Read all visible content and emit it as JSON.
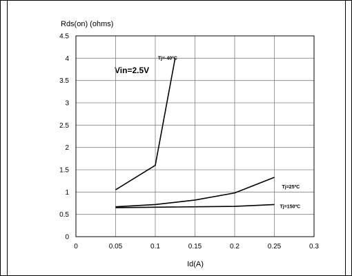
{
  "chart_data": {
    "type": "line",
    "ylabel": "Rds(on) (ohms)",
    "xlabel": "Id(A)",
    "annotation": "Vin=2.5V",
    "xlim": [
      0,
      0.3
    ],
    "ylim": [
      0,
      4.5
    ],
    "x_ticks": [
      "0",
      "0.05",
      "0.1",
      "0.15",
      "0.2",
      "0.25",
      "0.3"
    ],
    "y_ticks": [
      "0",
      "0.5",
      "1",
      "1.5",
      "2",
      "2.5",
      "3",
      "3.5",
      "4",
      "4.5"
    ],
    "grid": true,
    "series": [
      {
        "name": "Tj=-40ºC",
        "color": "#000000",
        "points": [
          [
            0.05,
            1.05
          ],
          [
            0.1,
            1.6
          ],
          [
            0.125,
            4.0
          ]
        ]
      },
      {
        "name": "Tj=25ºC",
        "color": "#000000",
        "points": [
          [
            0.05,
            0.67
          ],
          [
            0.1,
            0.72
          ],
          [
            0.15,
            0.82
          ],
          [
            0.2,
            0.98
          ],
          [
            0.25,
            1.33
          ]
        ]
      },
      {
        "name": "Tj=150ºC",
        "color": "#000000",
        "points": [
          [
            0.05,
            0.65
          ],
          [
            0.1,
            0.66
          ],
          [
            0.15,
            0.67
          ],
          [
            0.2,
            0.68
          ],
          [
            0.25,
            0.72
          ]
        ]
      }
    ]
  }
}
